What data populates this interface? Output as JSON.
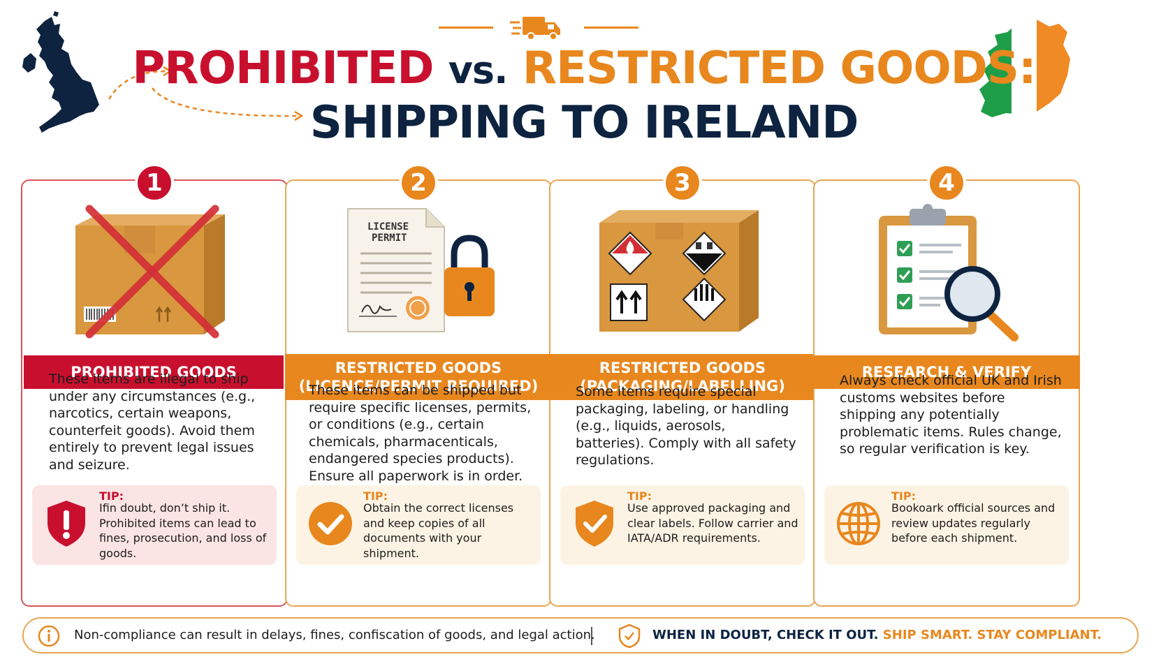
{
  "header": {
    "title_red": "PROHIBITED",
    "title_vs": "vs.",
    "title_orange": "RESTRICTED GOODS:",
    "title_line2": "SHIPPING TO IRELAND"
  },
  "colors": {
    "red": "#c8102e",
    "orange": "#e8871e",
    "navy": "#0d2340",
    "green": "#1e9e48"
  },
  "cards": [
    {
      "number": "1",
      "title_line1": "PROHIBITED GOODS",
      "title_line2": "",
      "illustration": "crossed-out-box",
      "description": "These items are illegal to ship under any circumstances (e.g., narcotics, certain weapons, counterfeit goods). Avoid them entirely to prevent legal issues and seizure.",
      "tip_label": "TIP:",
      "tip_text": "Ifin doubt, don’t ship it. Prohibited items can lead to fines, prosecution, and loss of goods.",
      "tip_icon": "warning-shield-icon"
    },
    {
      "number": "2",
      "title_line1": "RESTRICTED GOODS",
      "title_line2": "(LICENCE/PERMIT REQUIRED)",
      "illustration": "license-permit-with-padlock",
      "document_heading_1": "LICENSE",
      "document_heading_2": "PERMIT",
      "description": "These items can be shipped but require specific licenses, permits, or conditions (e.g., certain chemicals, pharmacenticals, endangered species products). Ensure all paperwork is in order.",
      "tip_label": "TIP:",
      "tip_text": "Obtain the correct licenses and keep copies of all documents with your shipment.",
      "tip_icon": "check-circle-icon"
    },
    {
      "number": "3",
      "title_line1": "RESTRICTED GOODS",
      "title_line2": "(PACKAGING/LABELLING)",
      "illustration": "box-with-hazard-labels",
      "description": "Some items require special packaging, labeling, or handling (e.g., liquids, aerosols, batteries). Comply with all safety regulations.",
      "tip_label": "TIP:",
      "tip_text": "Use approved packaging and clear labels. Follow carrier and IATA/ADR requirements.",
      "tip_icon": "check-shield-icon"
    },
    {
      "number": "4",
      "title_line1": "RESEARCH & VERIFY",
      "title_line2": "",
      "illustration": "clipboard-with-magnifier",
      "description": "Always check official UK and Irish customs websites before shipping any potentially problematic items. Rules change, so regular verification is key.",
      "tip_label": "TIP:",
      "tip_text": "Bookoark official sources and review updates regularly before each shipment.",
      "tip_icon": "globe-icon"
    }
  ],
  "footer": {
    "left_text": "Non-compliance can result in delays, fines, confiscation of goods, and legal action.",
    "right_text_1": "WHEN IN DOUBT, CHECK IT OUT.",
    "right_text_2": "SHIP SMART. STAY COMPLIANT."
  }
}
